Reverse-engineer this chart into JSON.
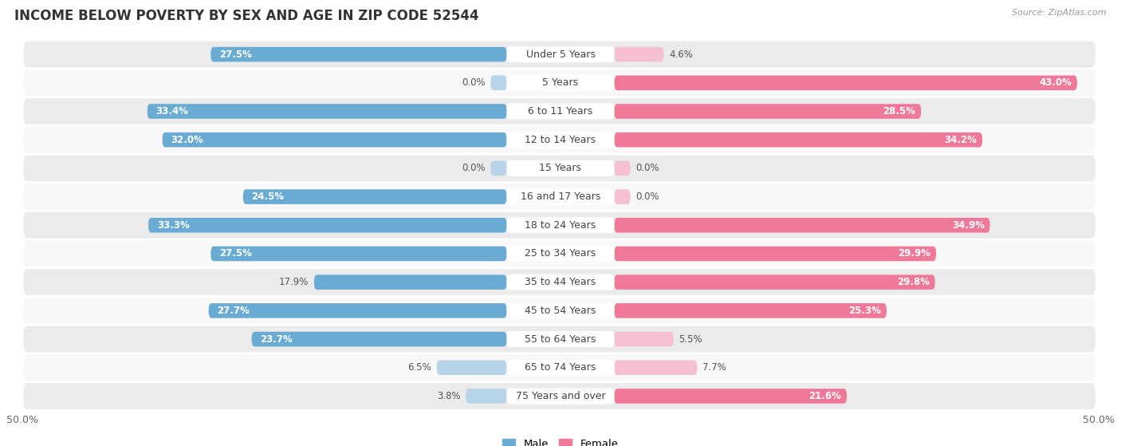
{
  "title": "INCOME BELOW POVERTY BY SEX AND AGE IN ZIP CODE 52544",
  "source": "Source: ZipAtlas.com",
  "categories": [
    "Under 5 Years",
    "5 Years",
    "6 to 11 Years",
    "12 to 14 Years",
    "15 Years",
    "16 and 17 Years",
    "18 to 24 Years",
    "25 to 34 Years",
    "35 to 44 Years",
    "45 to 54 Years",
    "55 to 64 Years",
    "65 to 74 Years",
    "75 Years and over"
  ],
  "male_values": [
    27.5,
    0.0,
    33.4,
    32.0,
    0.0,
    24.5,
    33.3,
    27.5,
    17.9,
    27.7,
    23.7,
    6.5,
    3.8
  ],
  "female_values": [
    4.6,
    43.0,
    28.5,
    34.2,
    0.0,
    0.0,
    34.9,
    29.9,
    29.8,
    25.3,
    5.5,
    7.7,
    21.6
  ],
  "male_strong": "#6aabd4",
  "male_light": "#b8d4e8",
  "female_strong": "#f07898",
  "female_light": "#f5c0d0",
  "row_bg_even": "#ebebeb",
  "row_bg_odd": "#f8f8f8",
  "axis_max": 50.0,
  "label_fontsize": 9,
  "title_fontsize": 12,
  "value_fontsize": 8.5,
  "source_fontsize": 8
}
